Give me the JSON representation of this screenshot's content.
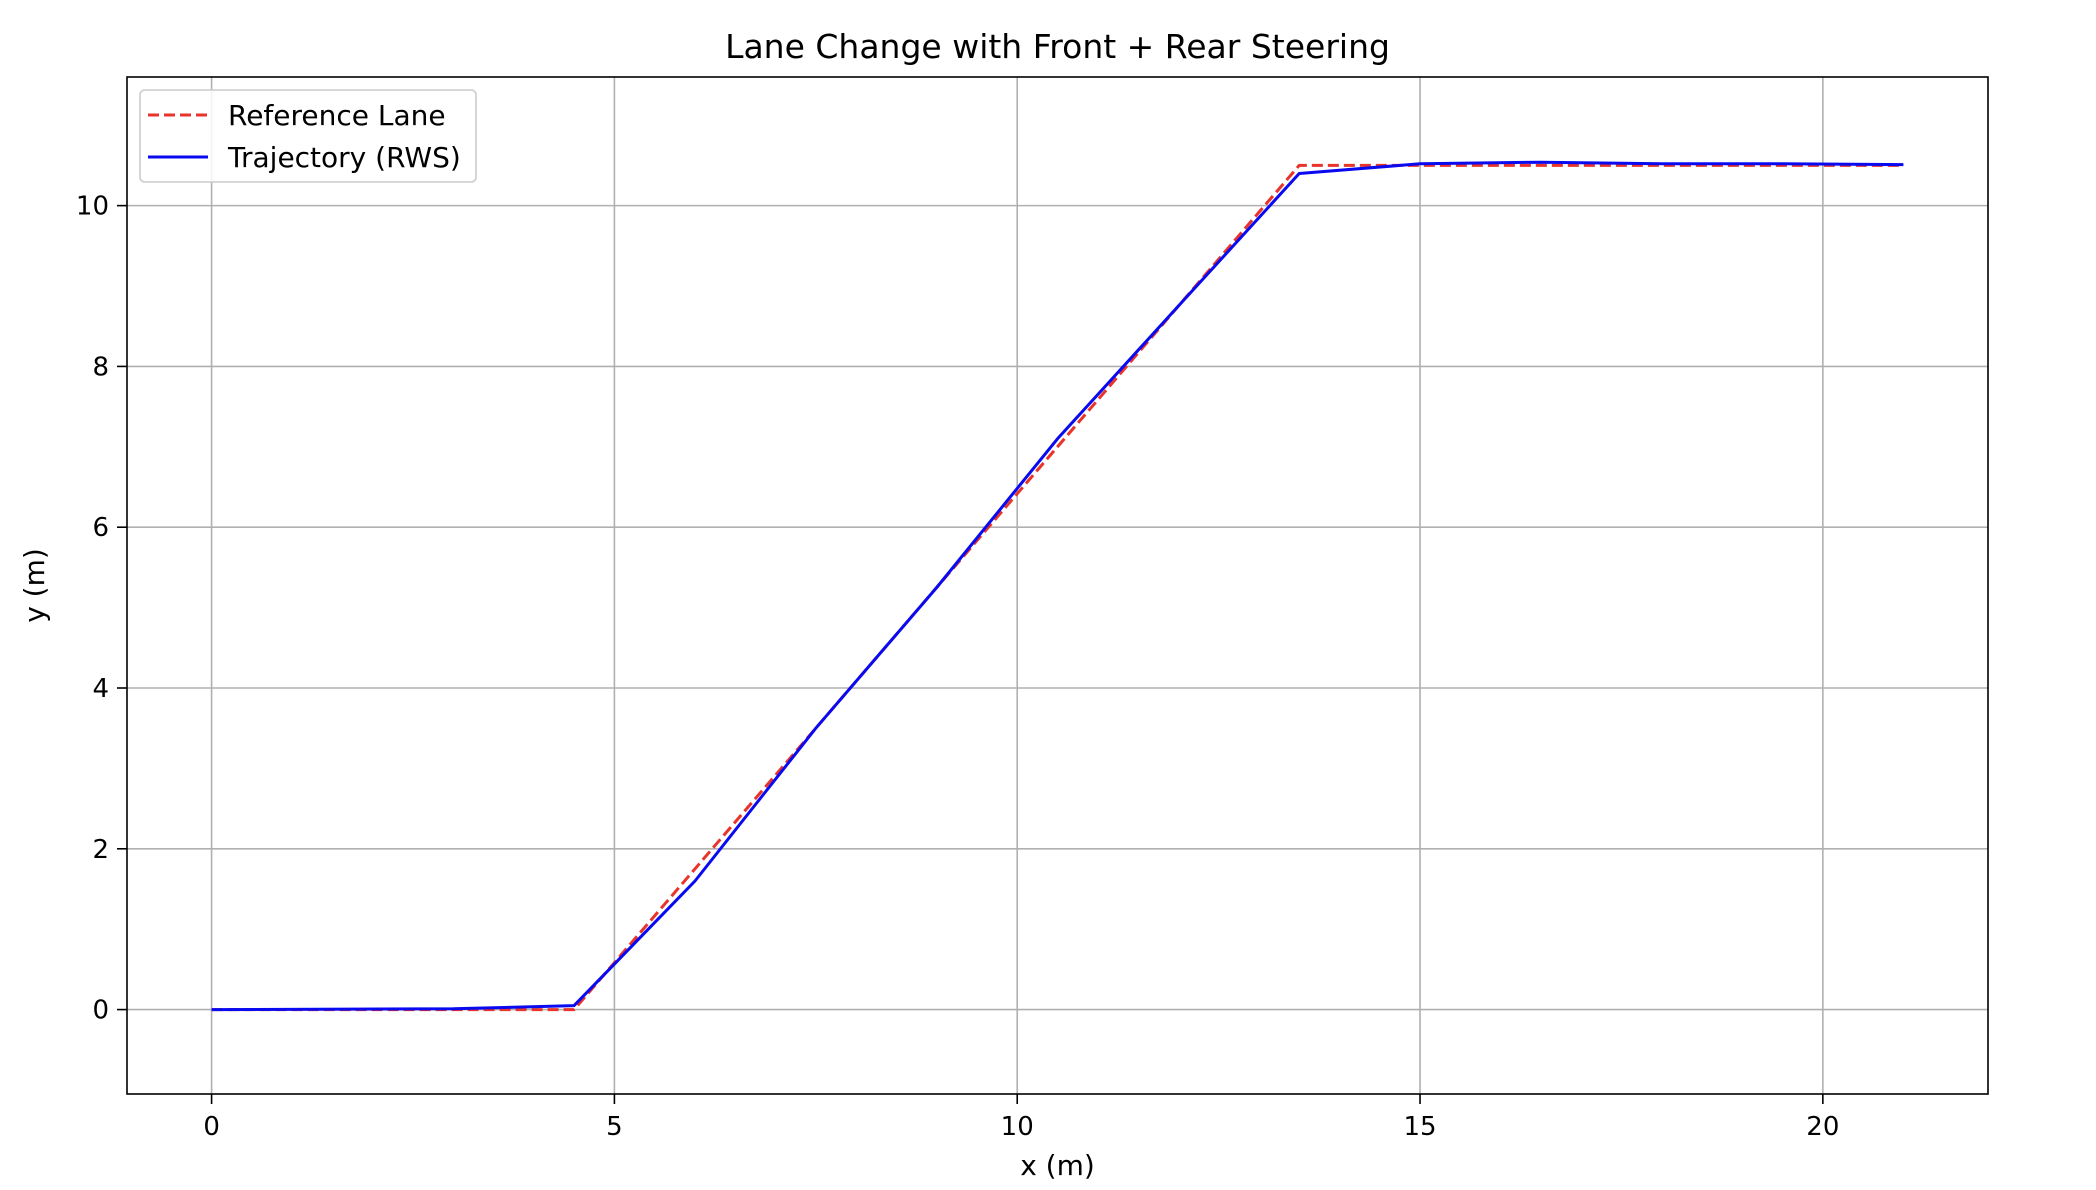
{
  "chart_data": {
    "type": "line",
    "title": "Lane Change with Front + Rear Steering",
    "xlabel": "x (m)",
    "ylabel": "y (m)",
    "xlim": [
      -1.05,
      22.05
    ],
    "ylim": [
      -1.05,
      11.6
    ],
    "xticks": [
      0,
      5,
      10,
      15,
      20
    ],
    "yticks": [
      0,
      2,
      4,
      6,
      8,
      10
    ],
    "grid": true,
    "legend_position": "top-left",
    "series": [
      {
        "name": "Reference Lane",
        "color": "#e8342a",
        "style": "dashed",
        "x": [
          0,
          4.5,
          13.5,
          15,
          21
        ],
        "y": [
          0,
          0,
          10.5,
          10.5,
          10.5
        ]
      },
      {
        "name": "Trajectory (RWS)",
        "color": "#0a0af0",
        "style": "solid",
        "x": [
          0,
          3.0,
          4.5,
          6.0,
          7.5,
          9.0,
          10.5,
          12.0,
          13.5,
          15.0,
          16.5,
          18.0,
          19.5,
          21.0
        ],
        "y": [
          0,
          0.01,
          0.05,
          1.6,
          3.5,
          5.25,
          7.1,
          8.75,
          10.4,
          10.52,
          10.54,
          10.52,
          10.52,
          10.51
        ]
      }
    ]
  }
}
